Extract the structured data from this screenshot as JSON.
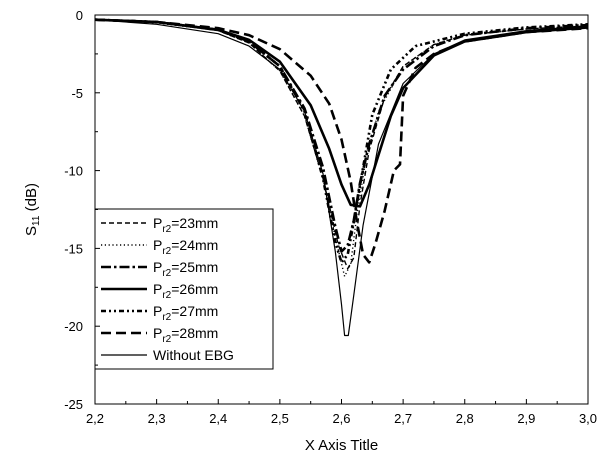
{
  "chart_data": {
    "type": "line",
    "title": "",
    "xlabel": "X Axis Title",
    "ylabel": {
      "main": "S",
      "sub": "11",
      "unit": " (dB)"
    },
    "xlim": [
      2.2,
      3.0
    ],
    "ylim": [
      -25,
      0
    ],
    "x_ticks": [
      "2,2",
      "2,3",
      "2,4",
      "2,5",
      "2,6",
      "2,7",
      "2,8",
      "2,9",
      "3,0"
    ],
    "y_ticks": [
      "0",
      "-5",
      "-10",
      "-15",
      "-20",
      "-25"
    ],
    "grid": false,
    "legend_position": "lower-left",
    "series": [
      {
        "name": {
          "main": "P",
          "sub": "r2",
          "rest": "=23mm"
        },
        "style": "dash",
        "points": [
          [
            2.2,
            -0.3
          ],
          [
            2.3,
            -0.45
          ],
          [
            2.4,
            -1.0
          ],
          [
            2.45,
            -1.8
          ],
          [
            2.5,
            -3.6
          ],
          [
            2.54,
            -6.5
          ],
          [
            2.57,
            -10.5
          ],
          [
            2.595,
            -14.8
          ],
          [
            2.61,
            -16.3
          ],
          [
            2.62,
            -15.6
          ],
          [
            2.63,
            -12.2
          ],
          [
            2.645,
            -8.7
          ],
          [
            2.67,
            -5.3
          ],
          [
            2.7,
            -3.3
          ],
          [
            2.75,
            -1.9
          ],
          [
            2.8,
            -1.3
          ],
          [
            2.9,
            -0.9
          ],
          [
            3.0,
            -0.7
          ]
        ]
      },
      {
        "name": {
          "main": "P",
          "sub": "r2",
          "rest": "=24mm"
        },
        "style": "dot",
        "points": [
          [
            2.2,
            -0.3
          ],
          [
            2.3,
            -0.5
          ],
          [
            2.4,
            -1.0
          ],
          [
            2.45,
            -1.8
          ],
          [
            2.5,
            -3.6
          ],
          [
            2.54,
            -6.5
          ],
          [
            2.57,
            -10.5
          ],
          [
            2.59,
            -14.3
          ],
          [
            2.605,
            -16.8
          ],
          [
            2.615,
            -16.0
          ],
          [
            2.625,
            -12.8
          ],
          [
            2.64,
            -9.2
          ],
          [
            2.66,
            -6.2
          ],
          [
            2.7,
            -3.3
          ],
          [
            2.75,
            -1.9
          ],
          [
            2.8,
            -1.3
          ],
          [
            2.9,
            -0.9
          ],
          [
            3.0,
            -0.7
          ]
        ]
      },
      {
        "name": {
          "main": "P",
          "sub": "r2",
          "rest": "=25mm"
        },
        "style": "dashdot",
        "points": [
          [
            2.2,
            -0.3
          ],
          [
            2.3,
            -0.45
          ],
          [
            2.4,
            -0.95
          ],
          [
            2.45,
            -1.7
          ],
          [
            2.5,
            -3.3
          ],
          [
            2.54,
            -6.0
          ],
          [
            2.57,
            -9.8
          ],
          [
            2.59,
            -13.6
          ],
          [
            2.6,
            -15.2
          ],
          [
            2.61,
            -14.8
          ],
          [
            2.62,
            -13.2
          ],
          [
            2.63,
            -10.8
          ],
          [
            2.645,
            -8.3
          ],
          [
            2.67,
            -5.2
          ],
          [
            2.7,
            -3.5
          ],
          [
            2.75,
            -2.0
          ],
          [
            2.8,
            -1.3
          ],
          [
            2.9,
            -0.85
          ],
          [
            3.0,
            -0.65
          ]
        ]
      },
      {
        "name": {
          "main": "P",
          "sub": "r2",
          "rest": "=26mm"
        },
        "style": "solid-thick",
        "points": [
          [
            2.2,
            -0.3
          ],
          [
            2.3,
            -0.45
          ],
          [
            2.4,
            -0.95
          ],
          [
            2.45,
            -1.6
          ],
          [
            2.5,
            -3.0
          ],
          [
            2.55,
            -5.8
          ],
          [
            2.58,
            -8.6
          ],
          [
            2.6,
            -10.9
          ],
          [
            2.615,
            -12.2
          ],
          [
            2.63,
            -12.3
          ],
          [
            2.645,
            -10.9
          ],
          [
            2.66,
            -9.0
          ],
          [
            2.68,
            -6.5
          ],
          [
            2.7,
            -4.7
          ],
          [
            2.75,
            -2.6
          ],
          [
            2.8,
            -1.7
          ],
          [
            2.9,
            -1.1
          ],
          [
            3.0,
            -0.8
          ]
        ]
      },
      {
        "name": {
          "main": "P",
          "sub": "r2",
          "rest": "=27mm"
        },
        "style": "dashdotdot",
        "points": [
          [
            2.2,
            -0.3
          ],
          [
            2.3,
            -0.45
          ],
          [
            2.4,
            -0.95
          ],
          [
            2.45,
            -1.7
          ],
          [
            2.5,
            -3.3
          ],
          [
            2.54,
            -6.2
          ],
          [
            2.57,
            -10.5
          ],
          [
            2.59,
            -14.6
          ],
          [
            2.6,
            -15.9
          ],
          [
            2.61,
            -15.4
          ],
          [
            2.62,
            -13.3
          ],
          [
            2.635,
            -9.8
          ],
          [
            2.65,
            -6.4
          ],
          [
            2.68,
            -3.5
          ],
          [
            2.72,
            -2.0
          ],
          [
            2.8,
            -1.2
          ],
          [
            2.9,
            -0.8
          ],
          [
            3.0,
            -0.6
          ]
        ]
      },
      {
        "name": {
          "main": "P",
          "sub": "r2",
          "rest": "=28mm"
        },
        "style": "longdash",
        "points": [
          [
            2.2,
            -0.3
          ],
          [
            2.3,
            -0.45
          ],
          [
            2.4,
            -0.85
          ],
          [
            2.45,
            -1.3
          ],
          [
            2.5,
            -2.2
          ],
          [
            2.55,
            -3.9
          ],
          [
            2.58,
            -5.7
          ],
          [
            2.6,
            -8.0
          ],
          [
            2.615,
            -10.7
          ],
          [
            2.625,
            -13.3
          ],
          [
            2.635,
            -15.4
          ],
          [
            2.645,
            -15.9
          ],
          [
            2.655,
            -14.7
          ],
          [
            2.67,
            -12.6
          ],
          [
            2.685,
            -10.0
          ],
          [
            2.695,
            -9.6
          ],
          [
            2.7,
            -5.2
          ],
          [
            2.72,
            -3.4
          ],
          [
            2.75,
            -2.5
          ],
          [
            2.8,
            -1.7
          ],
          [
            2.9,
            -1.1
          ],
          [
            3.0,
            -0.85
          ]
        ]
      },
      {
        "name": {
          "main": "Without EBG",
          "sub": "",
          "rest": ""
        },
        "style": "solid-thin",
        "points": [
          [
            2.2,
            -0.3
          ],
          [
            2.3,
            -0.6
          ],
          [
            2.4,
            -1.2
          ],
          [
            2.45,
            -2.0
          ],
          [
            2.5,
            -3.5
          ],
          [
            2.54,
            -6.2
          ],
          [
            2.57,
            -10.2
          ],
          [
            2.59,
            -15.2
          ],
          [
            2.6,
            -18.6
          ],
          [
            2.605,
            -20.6
          ],
          [
            2.611,
            -20.6
          ],
          [
            2.62,
            -18.0
          ],
          [
            2.635,
            -13.5
          ],
          [
            2.66,
            -8.3
          ],
          [
            2.7,
            -4.4
          ],
          [
            2.75,
            -2.5
          ],
          [
            2.8,
            -1.6
          ],
          [
            2.9,
            -1.0
          ],
          [
            3.0,
            -0.7
          ]
        ]
      }
    ]
  }
}
